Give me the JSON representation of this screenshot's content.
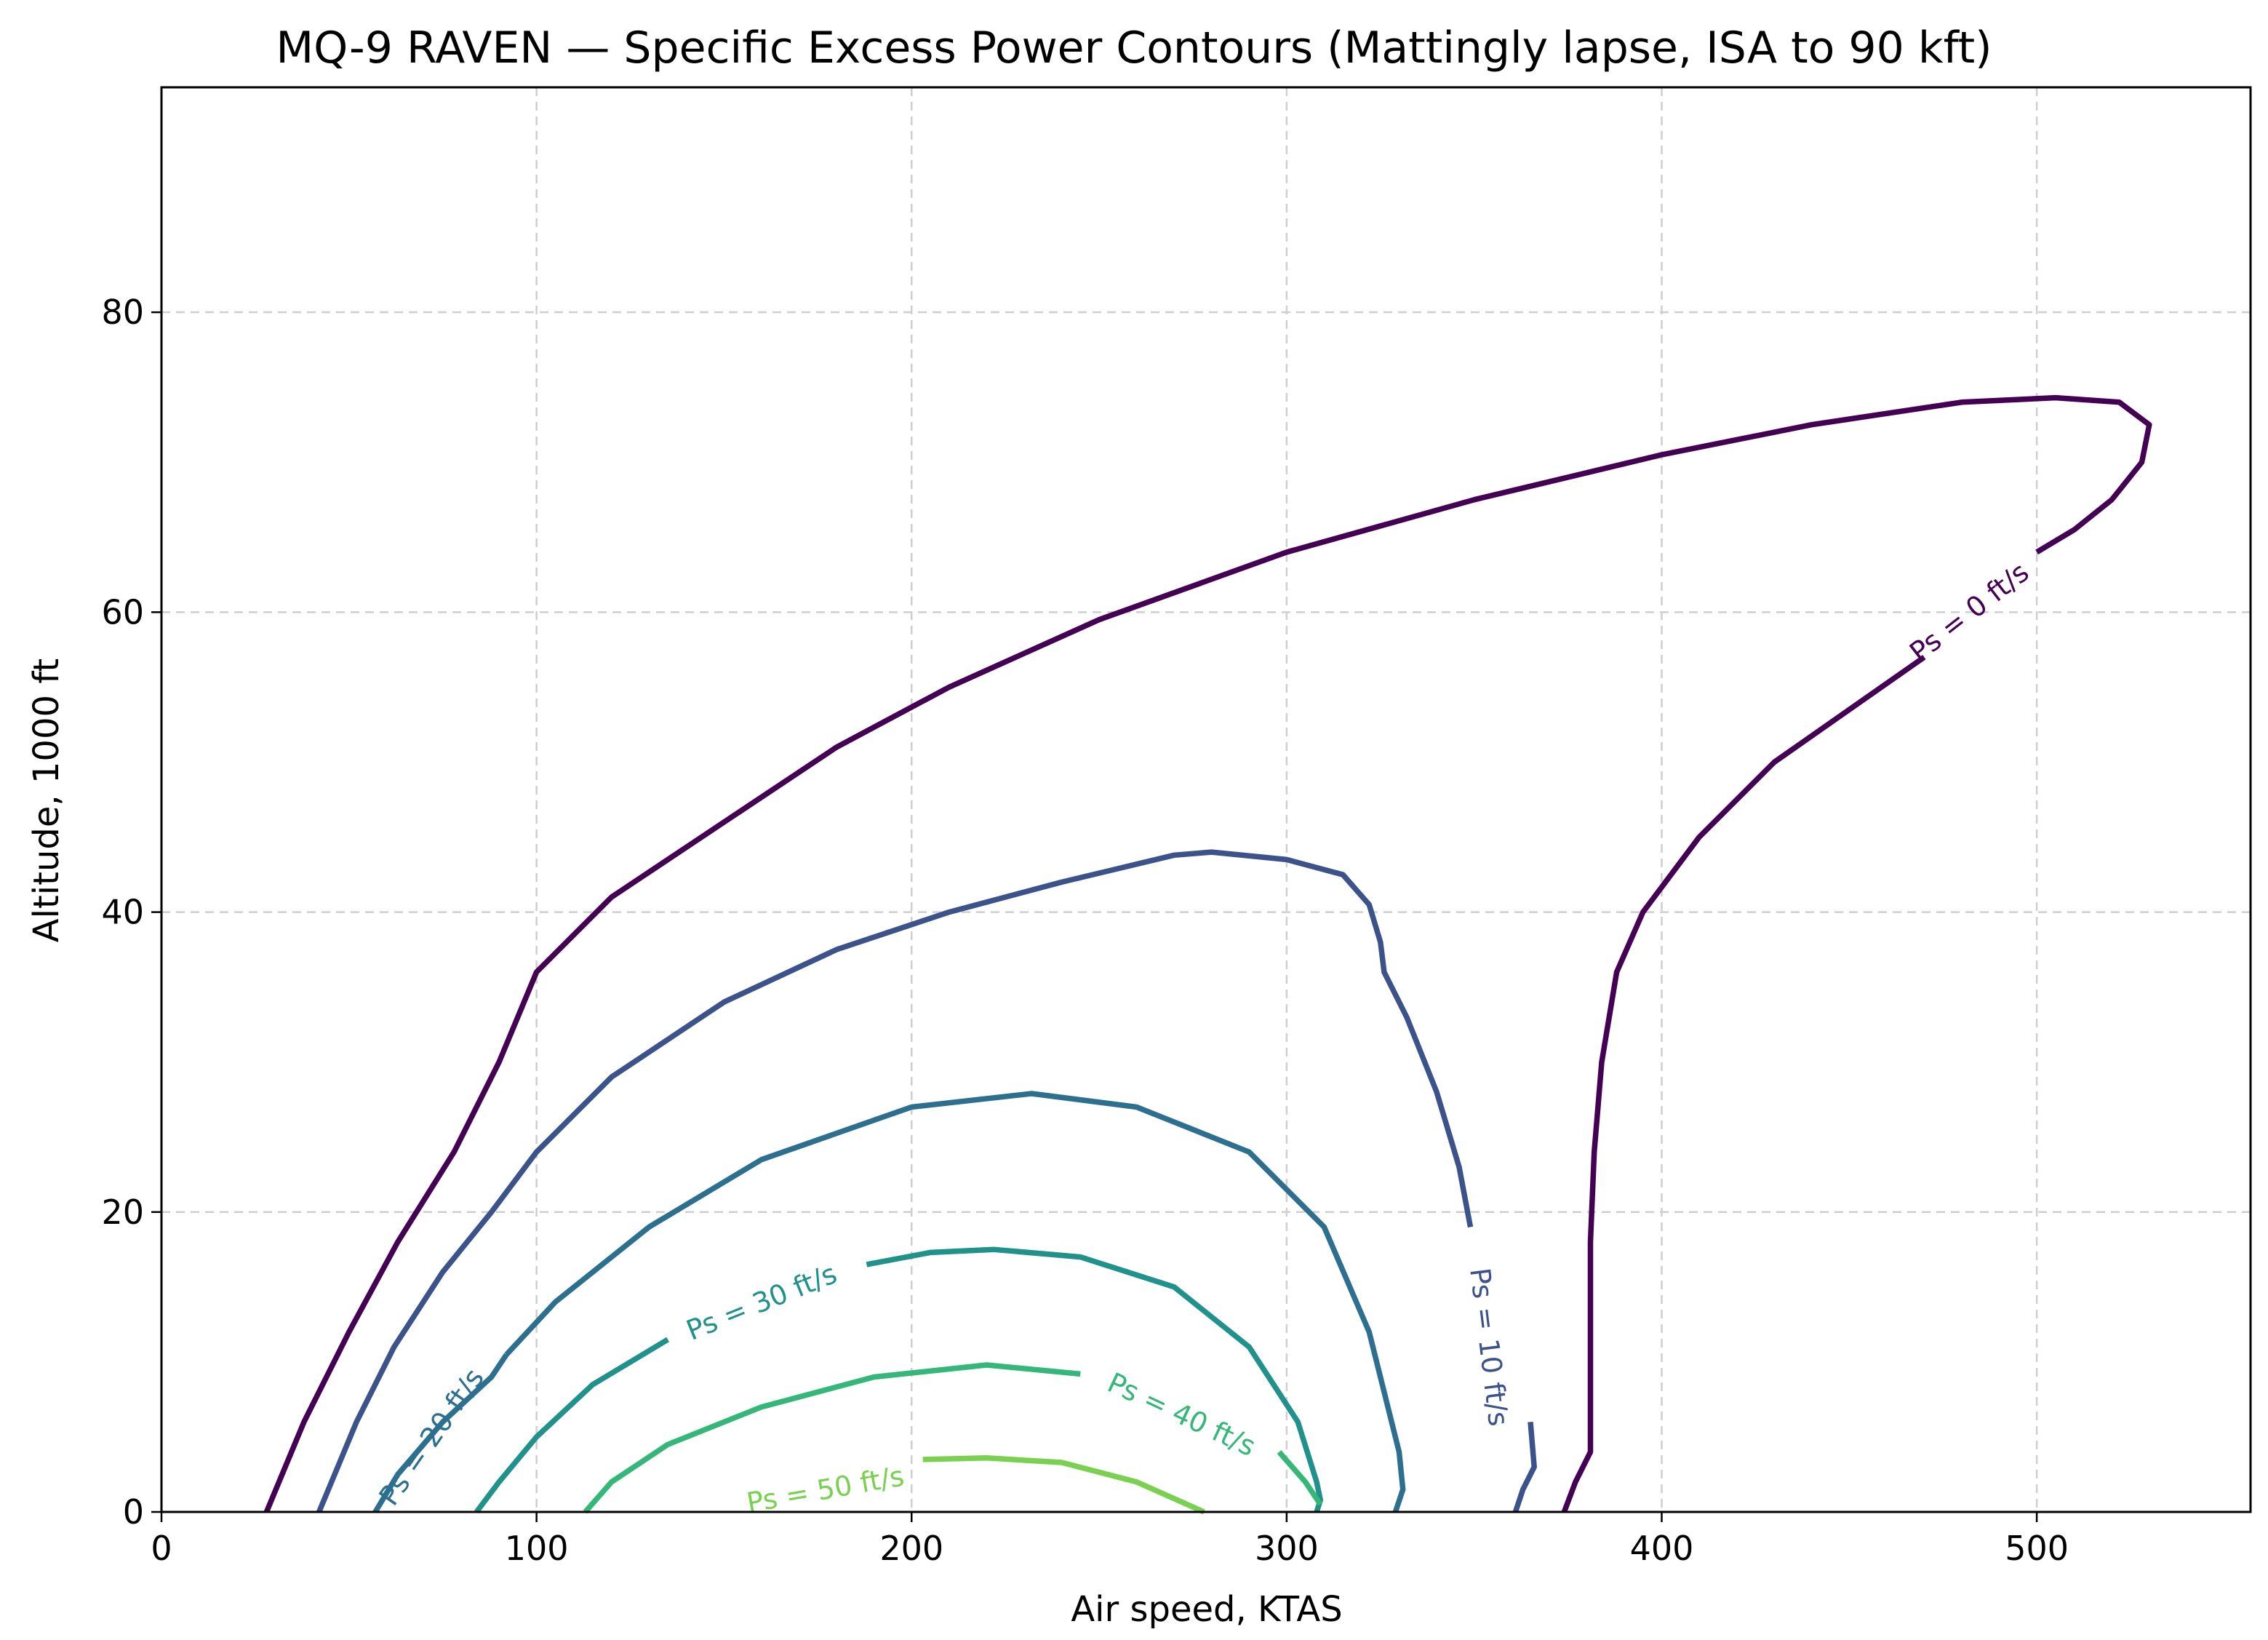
{
  "chart_data": {
    "type": "line",
    "title": "MQ-9 RAVEN — Specific Excess Power Contours (Mattingly lapse, ISA to 90 kft)",
    "xlabel": "Air speed, KTAS",
    "ylabel": "Altitude, 1000 ft",
    "xlim": [
      0,
      557
    ],
    "ylim": [
      0,
      95
    ],
    "xticks": [
      0,
      100,
      200,
      300,
      400,
      500
    ],
    "yticks": [
      0,
      20,
      40,
      60,
      80
    ],
    "grid": true,
    "series": [
      {
        "name": "Ps = 0 ft/s",
        "color": "#440154",
        "label_at": {
          "x": 482,
          "y": 60,
          "angle": -38
        },
        "segments": [
          [
            [
              28,
              0
            ],
            [
              38,
              6
            ],
            [
              50,
              12
            ],
            [
              63,
              18
            ],
            [
              78,
              24
            ],
            [
              90,
              30
            ],
            [
              100,
              36
            ],
            [
              120,
              41
            ],
            [
              150,
              46
            ],
            [
              180,
              51
            ],
            [
              210,
              55
            ],
            [
              250,
              59.5
            ],
            [
              300,
              64
            ],
            [
              350,
              67.5
            ],
            [
              400,
              70.5
            ],
            [
              440,
              72.5
            ],
            [
              480,
              74
            ],
            [
              505,
              74.3
            ],
            [
              522,
              74
            ],
            [
              530,
              72.5
            ],
            [
              528,
              70
            ],
            [
              520,
              67.5
            ],
            [
              510,
              65.5
            ],
            [
              500,
              64
            ]
          ],
          [
            [
              470,
              57
            ],
            [
              450,
              53.5
            ],
            [
              430,
              50
            ],
            [
              410,
              45
            ],
            [
              395,
              40
            ],
            [
              388,
              36
            ],
            [
              384,
              30
            ],
            [
              382,
              24
            ],
            [
              381,
              18
            ],
            [
              381,
              12
            ],
            [
              381,
              7
            ],
            [
              381,
              4
            ],
            [
              377,
              2
            ],
            [
              374,
              0
            ]
          ]
        ]
      },
      {
        "name": "Ps = 10 ft/s",
        "color": "#3b528b",
        "label_at": {
          "x": 354,
          "y": 11,
          "angle": 83
        },
        "segments": [
          [
            [
              42,
              0
            ],
            [
              52,
              6
            ],
            [
              62,
              11
            ],
            [
              75,
              16
            ],
            [
              88,
              20
            ],
            [
              100,
              24
            ],
            [
              120,
              29
            ],
            [
              150,
              34
            ],
            [
              180,
              37.5
            ],
            [
              210,
              40
            ],
            [
              240,
              42
            ],
            [
              270,
              43.8
            ],
            [
              280,
              44
            ],
            [
              300,
              43.5
            ],
            [
              315,
              42.5
            ],
            [
              322,
              40.5
            ],
            [
              325,
              38
            ],
            [
              326,
              36
            ],
            [
              332,
              33
            ],
            [
              340,
              28
            ],
            [
              346,
              23
            ],
            [
              349,
              19
            ]
          ],
          [
            [
              365,
              6
            ],
            [
              366,
              3
            ],
            [
              363,
              1.5
            ],
            [
              361,
              0
            ]
          ]
        ]
      },
      {
        "name": "Ps = 20 ft/s",
        "color": "#2c6f8e",
        "label_at": {
          "x": 72,
          "y": 5,
          "angle": -55
        },
        "segments": [
          [
            [
              57,
              0
            ],
            [
              63,
              2.5
            ],
            [
              75,
              6
            ],
            [
              88,
              9
            ],
            [
              92,
              10.5
            ]
          ],
          [
            [
              92,
              10.5
            ],
            [
              105,
              14
            ],
            [
              130,
              19
            ],
            [
              160,
              23.5
            ],
            [
              200,
              27
            ],
            [
              232,
              27.9
            ],
            [
              260,
              27
            ],
            [
              290,
              24
            ],
            [
              310,
              19
            ],
            [
              322,
              12
            ],
            [
              330,
              4
            ],
            [
              331,
              1.5
            ],
            [
              329,
              0
            ]
          ]
        ]
      },
      {
        "name": "Ps = 30 ft/s",
        "color": "#21918c",
        "label_at": {
          "x": 160,
          "y": 14,
          "angle": -22
        },
        "segments": [
          [
            [
              84,
              0
            ],
            [
              90,
              2
            ],
            [
              100,
              5
            ],
            [
              115,
              8.5
            ],
            [
              135,
              11.5
            ]
          ],
          [
            [
              188,
              16.5
            ],
            [
              205,
              17.3
            ],
            [
              222,
              17.5
            ],
            [
              245,
              17
            ],
            [
              270,
              15
            ],
            [
              290,
              11
            ],
            [
              303,
              6
            ],
            [
              308,
              2
            ],
            [
              309,
              0.8
            ],
            [
              308,
              0
            ]
          ]
        ]
      },
      {
        "name": "Ps = 40 ft/s",
        "color": "#35b779",
        "label_at": {
          "x": 272,
          "y": 6.5,
          "angle": 25
        },
        "segments": [
          [
            [
              113,
              0
            ],
            [
              120,
              2
            ],
            [
              135,
              4.5
            ],
            [
              160,
              7
            ],
            [
              190,
              9
            ],
            [
              220,
              9.8
            ],
            [
              245,
              9.2
            ]
          ],
          [
            [
              298,
              4
            ],
            [
              305,
              2
            ],
            [
              309,
              0.5
            ]
          ]
        ]
      },
      {
        "name": "Ps = 50 ft/s",
        "color": "#7ad151",
        "label_at": {
          "x": 177,
          "y": 1.5,
          "angle": -10
        },
        "segments": [
          [
            [
              203,
              3.5
            ],
            [
              220,
              3.6
            ],
            [
              240,
              3.3
            ],
            [
              260,
              2
            ],
            [
              278,
              0
            ]
          ]
        ]
      }
    ]
  }
}
